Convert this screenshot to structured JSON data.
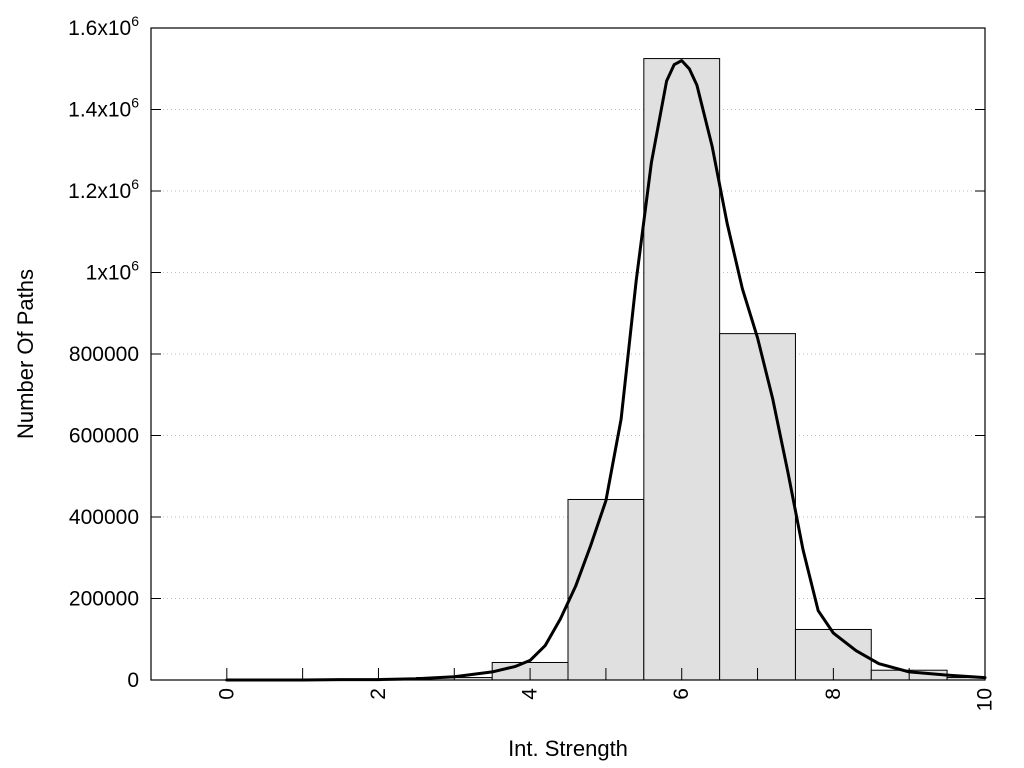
{
  "chart_data": {
    "type": "bar",
    "xlabel": "Int. Strength",
    "ylabel": "Number Of Paths",
    "xlim": [
      -1,
      10
    ],
    "ylim": [
      0,
      1600000
    ],
    "grid": "horizontal-dotted",
    "legend": "none",
    "x_ticks": [
      {
        "value": 0,
        "label": "0"
      },
      {
        "value": 2,
        "label": "2"
      },
      {
        "value": 4,
        "label": "4"
      },
      {
        "value": 6,
        "label": "6"
      },
      {
        "value": 8,
        "label": "8"
      },
      {
        "value": 10,
        "label": "10"
      }
    ],
    "y_ticks": [
      {
        "value": 0,
        "label": "0",
        "exp": ""
      },
      {
        "value": 200000,
        "label": "200000",
        "exp": ""
      },
      {
        "value": 400000,
        "label": "400000",
        "exp": ""
      },
      {
        "value": 600000,
        "label": "600000",
        "exp": ""
      },
      {
        "value": 800000,
        "label": "800000",
        "exp": ""
      },
      {
        "value": 1000000,
        "label": "1x10",
        "exp": "6"
      },
      {
        "value": 1200000,
        "label": "1.2x10",
        "exp": "6"
      },
      {
        "value": 1400000,
        "label": "1.4x10",
        "exp": "6"
      },
      {
        "value": 1600000,
        "label": "1.6x10",
        "exp": "6"
      }
    ],
    "bin_width": 1,
    "bars": [
      {
        "x": 0,
        "y": 0
      },
      {
        "x": 1,
        "y": 1000
      },
      {
        "x": 2,
        "y": 2000
      },
      {
        "x": 3,
        "y": 6000
      },
      {
        "x": 4,
        "y": 43000
      },
      {
        "x": 5,
        "y": 443000
      },
      {
        "x": 6,
        "y": 1525000
      },
      {
        "x": 7,
        "y": 850000
      },
      {
        "x": 8,
        "y": 124000
      },
      {
        "x": 9,
        "y": 24000
      },
      {
        "x": 10,
        "y": 6000
      }
    ],
    "fit_curve": {
      "x": [
        0,
        0.5,
        1,
        1.5,
        2,
        2.5,
        3,
        3.5,
        3.8,
        4,
        4.2,
        4.4,
        4.6,
        4.8,
        5,
        5.2,
        5.4,
        5.6,
        5.8,
        5.9,
        6,
        6.1,
        6.2,
        6.4,
        6.6,
        6.8,
        7,
        7.2,
        7.4,
        7.6,
        7.8,
        8,
        8.3,
        8.6,
        9,
        9.5,
        10
      ],
      "y": [
        0,
        0,
        0,
        1000,
        1000,
        3000,
        8000,
        20000,
        33000,
        48000,
        85000,
        150000,
        230000,
        330000,
        440000,
        640000,
        980000,
        1270000,
        1470000,
        1510000,
        1520000,
        1500000,
        1460000,
        1310000,
        1120000,
        960000,
        840000,
        690000,
        510000,
        320000,
        170000,
        115000,
        72000,
        40000,
        20000,
        12000,
        6000
      ]
    },
    "bar_color": "#e0e0e0",
    "bar_stroke": "#000000",
    "curve_color": "#000000",
    "grid_color": "#bdbdbd"
  }
}
